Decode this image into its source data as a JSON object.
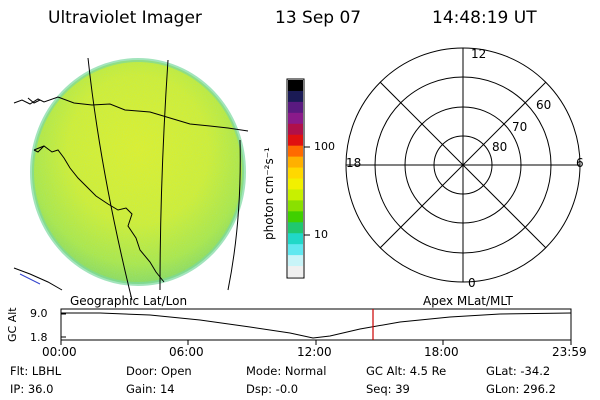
{
  "header": {
    "title": "Ultraviolet Imager",
    "date": "13 Sep 07",
    "time": "14:48:19 UT"
  },
  "colorbar": {
    "label": "photon cm⁻²s⁻¹",
    "ticks": [
      "100",
      "10"
    ],
    "colors": [
      "#000000",
      "#1a1a55",
      "#5a1a80",
      "#8a1a8a",
      "#b0104a",
      "#e01010",
      "#ff6a00",
      "#ffb000",
      "#ffd800",
      "#f2f000",
      "#c8f000",
      "#8ae000",
      "#40d000",
      "#20c870",
      "#20d8c8",
      "#60e8f0",
      "#c8f4f8",
      "#f0f0f0"
    ]
  },
  "polar": {
    "labels": {
      "top": "12",
      "bottom": "0",
      "left": "18",
      "right": "6"
    },
    "rings": [
      "60",
      "70",
      "80"
    ]
  },
  "timeline": {
    "left_label": "Geographic Lat/Lon",
    "right_label": "Apex MLat/MLT",
    "axis_label": "GC Alt",
    "y_ticks": [
      "9.0",
      "1.8"
    ],
    "x_ticks": [
      "00:00",
      "06:00",
      "12:00",
      "18:00",
      "23:59"
    ],
    "current_marker_color": "#cc0000"
  },
  "info": {
    "flt": "Flt: LBHL",
    "ip": "IP: 36.0",
    "door": "Door: Open",
    "gain": "Gain: 14",
    "mode": "Mode: Normal",
    "dsp": "Dsp:   -0.0",
    "gc_alt": "GC Alt: 4.5 Re",
    "seq": "Seq: 39",
    "glat": "GLat: -34.2",
    "glon": "GLon: 296.2"
  }
}
